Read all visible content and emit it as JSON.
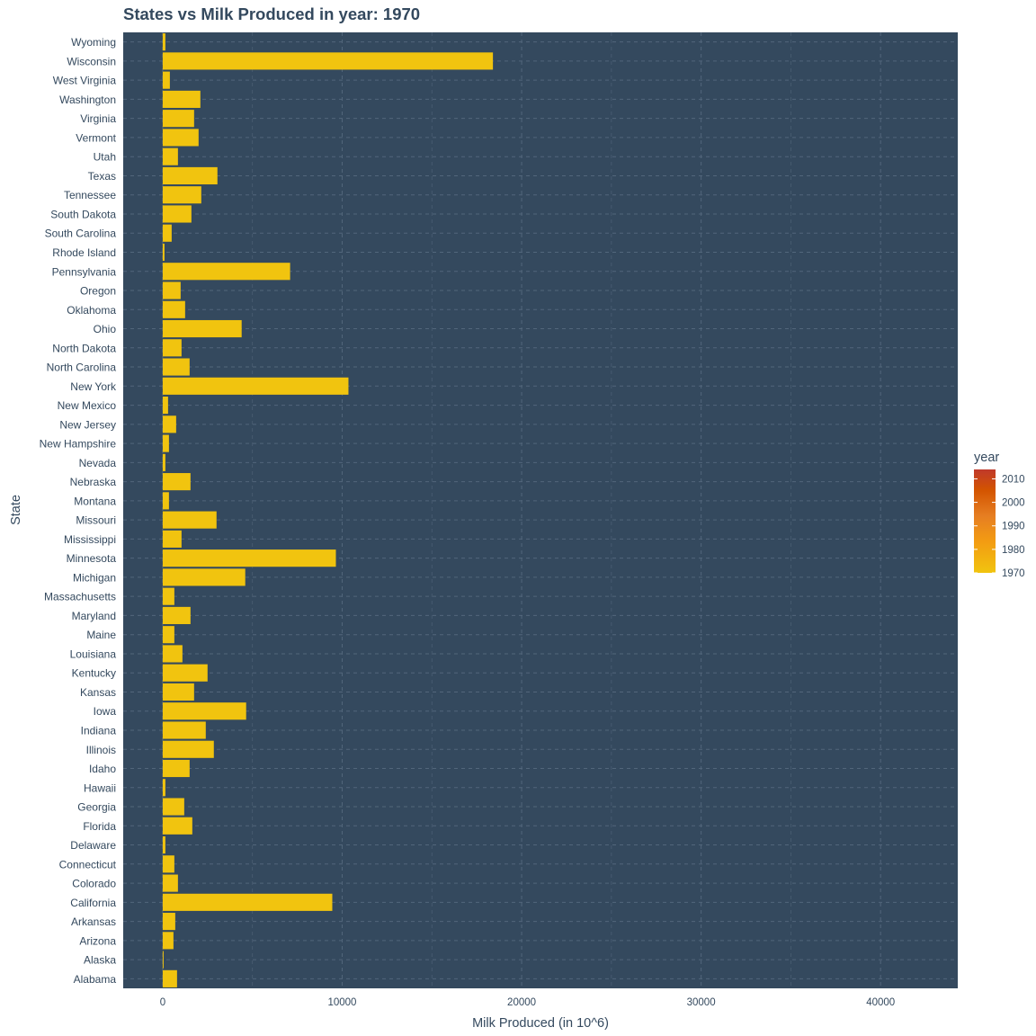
{
  "chart_data": {
    "type": "bar",
    "orientation": "horizontal",
    "title": "States vs Milk Produced in year: 1970",
    "xlabel": "Milk Produced (in 10^6)",
    "ylabel": "State",
    "xlim": [
      -2200,
      44300
    ],
    "x_ticks": [
      0,
      10000,
      20000,
      30000,
      40000
    ],
    "grid": "dashed",
    "categories": [
      "Alabama",
      "Alaska",
      "Arizona",
      "Arkansas",
      "California",
      "Colorado",
      "Connecticut",
      "Delaware",
      "Florida",
      "Georgia",
      "Hawaii",
      "Idaho",
      "Illinois",
      "Indiana",
      "Iowa",
      "Kansas",
      "Kentucky",
      "Louisiana",
      "Maine",
      "Maryland",
      "Massachusetts",
      "Michigan",
      "Minnesota",
      "Mississippi",
      "Missouri",
      "Montana",
      "Nebraska",
      "Nevada",
      "New Hampshire",
      "New Jersey",
      "New Mexico",
      "New York",
      "North Carolina",
      "North Dakota",
      "Ohio",
      "Oklahoma",
      "Oregon",
      "Pennsylvania",
      "Rhode Island",
      "South Carolina",
      "South Dakota",
      "Tennessee",
      "Texas",
      "Utah",
      "Vermont",
      "Virginia",
      "Washington",
      "West Virginia",
      "Wisconsin",
      "Wyoming"
    ],
    "values": [
      800,
      50,
      600,
      700,
      9450,
      850,
      650,
      150,
      1650,
      1200,
      150,
      1500,
      2850,
      2400,
      4650,
      1750,
      2500,
      1100,
      650,
      1550,
      650,
      4600,
      9650,
      1050,
      3000,
      350,
      1550,
      150,
      350,
      750,
      300,
      10350,
      1500,
      1050,
      4400,
      1250,
      1000,
      7100,
      100,
      500,
      1600,
      2150,
      3050,
      850,
      2000,
      1750,
      2100,
      400,
      18400,
      150
    ],
    "bar_color": "#f1c40f",
    "panel_color": "#34495e",
    "legend": {
      "title": "year",
      "position": "right",
      "type": "colorbar",
      "labels": [
        "2010",
        "2000",
        "1990",
        "1980",
        "1970"
      ],
      "colors": [
        "#c0392b",
        "#d35400",
        "#e67e22",
        "#f39c12",
        "#f1c40f"
      ],
      "range": [
        1970,
        2014
      ]
    }
  }
}
